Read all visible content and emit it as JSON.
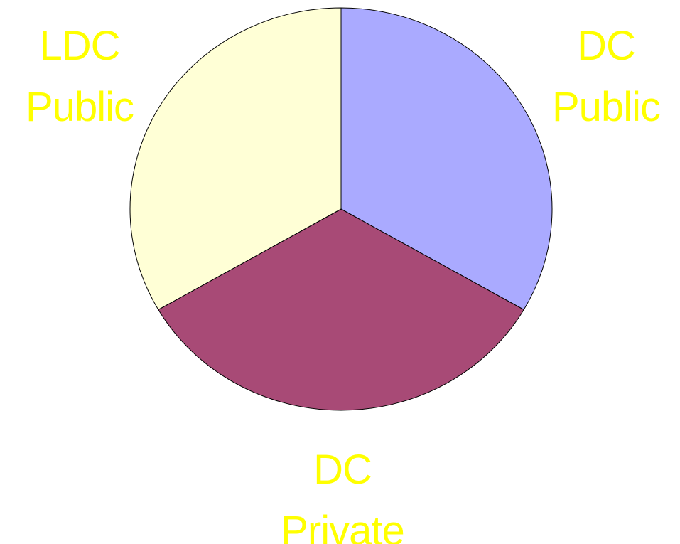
{
  "chart_data": {
    "type": "pie",
    "categories": [
      "DC Public",
      "DC Private",
      "LDC Public"
    ],
    "values": [
      33.3,
      33.3,
      33.3
    ],
    "colors": [
      "#aaaaff",
      "#a84a76",
      "#ffffd6"
    ],
    "label_color": "#ffff00"
  }
}
